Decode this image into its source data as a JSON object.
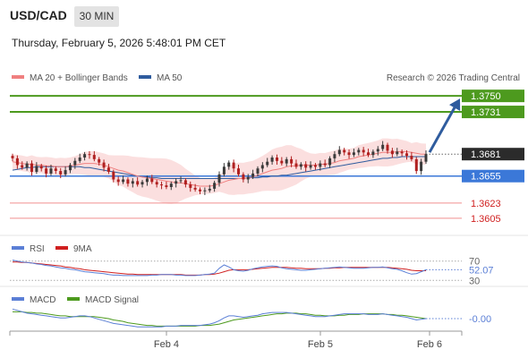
{
  "header": {
    "symbol": "USD/CAD",
    "timeframe": "30 MIN",
    "datetime": "Thursday, February 5, 2026 5:48:01 PM CET"
  },
  "copyright": "Research © 2026 Trading Central",
  "colors": {
    "resistance": "#4d9a1e",
    "support": "#3b78d8",
    "minor": "#f08f8f",
    "ma20": "#f08080",
    "ma50": "#2f5c9e",
    "band_fill": "#f9d4d4",
    "candle_up": "#3a3a3a",
    "candle_down": "#b02020",
    "rsi": "#5b7fd6",
    "rsi_ma": "#d02020",
    "macd": "#5b7fd6",
    "macd_signal": "#4d9a1e",
    "arrow": "#2f5c9e"
  },
  "chart_data": [
    {
      "type": "candlestick",
      "legend": [
        {
          "name": "MA 20 + Bollinger Bands",
          "color": "#f08080"
        },
        {
          "name": "MA 50",
          "color": "#2f5c9e"
        }
      ],
      "ylim": [
        1.359,
        1.3765
      ],
      "x_ticks": [
        "Feb 4",
        "Feb 5",
        "Feb 6"
      ],
      "levels": [
        {
          "label": "1.3750",
          "value": 1.375,
          "kind": "resistance"
        },
        {
          "label": "1.3731",
          "value": 1.3731,
          "kind": "resistance"
        },
        {
          "label": "1.3681",
          "value": 1.3681,
          "kind": "current"
        },
        {
          "label": "1.3655",
          "value": 1.3655,
          "kind": "support"
        },
        {
          "label": "1.3623",
          "value": 1.3623,
          "kind": "minor"
        },
        {
          "label": "1.3605",
          "value": 1.3605,
          "kind": "minor"
        }
      ],
      "close": [
        1.3676,
        1.3668,
        1.3665,
        1.367,
        1.366,
        1.3667,
        1.3664,
        1.3658,
        1.3664,
        1.3661,
        1.3657,
        1.3662,
        1.3668,
        1.3673,
        1.3677,
        1.3681,
        1.368,
        1.3675,
        1.3671,
        1.3665,
        1.366,
        1.3651,
        1.3648,
        1.3651,
        1.3646,
        1.3649,
        1.3645,
        1.3648,
        1.3652,
        1.3648,
        1.3645,
        1.3644,
        1.3642,
        1.3646,
        1.3649,
        1.365,
        1.3645,
        1.3641,
        1.3639,
        1.3637,
        1.3638,
        1.364,
        1.3647,
        1.3657,
        1.3666,
        1.3671,
        1.3664,
        1.3657,
        1.3651,
        1.3654,
        1.3658,
        1.3664,
        1.3668,
        1.3672,
        1.3677,
        1.3673,
        1.367,
        1.3675,
        1.367,
        1.3666,
        1.3669,
        1.3665,
        1.3668,
        1.3666,
        1.367,
        1.3668,
        1.3676,
        1.3681,
        1.3686,
        1.3683,
        1.368,
        1.3683,
        1.3686,
        1.3683,
        1.368,
        1.3684,
        1.3687,
        1.3692,
        1.3685,
        1.3681,
        1.3684,
        1.3682,
        1.3679,
        1.3675,
        1.3661,
        1.3672,
        1.3681
      ],
      "ma20": [
        1.3672,
        1.3671,
        1.367,
        1.3669,
        1.3669,
        1.3668,
        1.3668,
        1.3667,
        1.3667,
        1.3666,
        1.3666,
        1.3666,
        1.3667,
        1.3668,
        1.3669,
        1.367,
        1.367,
        1.367,
        1.3669,
        1.3668,
        1.3666,
        1.3664,
        1.3662,
        1.3661,
        1.3659,
        1.3657,
        1.3655,
        1.3654,
        1.3653,
        1.3652,
        1.3651,
        1.365,
        1.3649,
        1.3648,
        1.3647,
        1.3647,
        1.3646,
        1.3645,
        1.3644,
        1.3643,
        1.3643,
        1.3643,
        1.3644,
        1.3646,
        1.3648,
        1.365,
        1.3651,
        1.3652,
        1.3652,
        1.3653,
        1.3654,
        1.3656,
        1.3658,
        1.366,
        1.3662,
        1.3663,
        1.3664,
        1.3666,
        1.3667,
        1.3667,
        1.3668,
        1.3668,
        1.3668,
        1.3668,
        1.3669,
        1.3669,
        1.367,
        1.3671,
        1.3673,
        1.3674,
        1.3675,
        1.3676,
        1.3678,
        1.3679,
        1.368,
        1.3681,
        1.3682,
        1.3683,
        1.3683,
        1.3683,
        1.3684,
        1.3684,
        1.3684,
        1.3683,
        1.3682,
        1.3681,
        1.3681
      ],
      "ma50": [
        1.3662,
        1.3663,
        1.3664,
        1.3665,
        1.3665,
        1.3666,
        1.3666,
        1.3666,
        1.3666,
        1.3666,
        1.3666,
        1.3666,
        1.3666,
        1.3666,
        1.3666,
        1.3665,
        1.3665,
        1.3664,
        1.3663,
        1.3662,
        1.3661,
        1.366,
        1.3659,
        1.3658,
        1.3657,
        1.3656,
        1.3655,
        1.3654,
        1.3654,
        1.3653,
        1.3653,
        1.3652,
        1.3652,
        1.3652,
        1.3652,
        1.3652,
        1.3652,
        1.3652,
        1.3652,
        1.3652,
        1.3652,
        1.3652,
        1.3652,
        1.3652,
        1.3652,
        1.3652,
        1.3652,
        1.3652,
        1.3652,
        1.3653,
        1.3653,
        1.3653,
        1.3654,
        1.3654,
        1.3655,
        1.3655,
        1.3656,
        1.3656,
        1.3657,
        1.3658,
        1.3659,
        1.366,
        1.3661,
        1.3662,
        1.3663,
        1.3664,
        1.3665,
        1.3666,
        1.3667,
        1.3668,
        1.3669,
        1.367,
        1.3671,
        1.3672,
        1.3673,
        1.3674,
        1.3675,
        1.3676,
        1.3676,
        1.3677,
        1.3677,
        1.3678,
        1.3678,
        1.3678,
        1.3678,
        1.3678,
        1.3678
      ],
      "projection": {
        "from": 1.3681,
        "to": 1.375
      }
    },
    {
      "type": "line",
      "legend": [
        {
          "name": "RSI",
          "color": "#5b7fd6"
        },
        {
          "name": "9MA",
          "color": "#d02020"
        }
      ],
      "ylim": [
        25,
        75
      ],
      "levels": [
        {
          "label": "70",
          "value": 70
        },
        {
          "label": "30",
          "value": 30
        }
      ],
      "last_value_label": "52.07",
      "series": [
        {
          "name": "RSI",
          "values": [
            72,
            70,
            68,
            67,
            66,
            64,
            63,
            61,
            60,
            58,
            56,
            55,
            53,
            52,
            50,
            48,
            47,
            46,
            45,
            44,
            42,
            41,
            41,
            40,
            40,
            40,
            40,
            40,
            40,
            41,
            41,
            42,
            42,
            42,
            41,
            41,
            40,
            40,
            40,
            41,
            42,
            43,
            45,
            55,
            62,
            58,
            52,
            50,
            49,
            51,
            54,
            56,
            58,
            59,
            60,
            59,
            56,
            54,
            53,
            52,
            51,
            51,
            52,
            53,
            54,
            55,
            56,
            57,
            58,
            57,
            56,
            55,
            55,
            55,
            56,
            57,
            57,
            58,
            56,
            54,
            53,
            50,
            46,
            43,
            44,
            48,
            52
          ]
        },
        {
          "name": "9MA",
          "values": [
            68,
            68,
            67,
            67,
            66,
            65,
            64,
            63,
            62,
            61,
            60,
            58,
            57,
            55,
            54,
            52,
            51,
            50,
            49,
            48,
            47,
            46,
            45,
            44,
            43,
            43,
            42,
            42,
            42,
            42,
            42,
            42,
            42,
            42,
            42,
            42,
            41,
            41,
            41,
            41,
            42,
            42,
            43,
            45,
            48,
            51,
            52,
            52,
            52,
            52,
            53,
            54,
            55,
            56,
            57,
            57,
            57,
            57,
            56,
            55,
            55,
            54,
            54,
            54,
            54,
            55,
            55,
            56,
            56,
            57,
            57,
            57,
            57,
            57,
            57,
            57,
            57,
            57,
            57,
            56,
            55,
            54,
            53,
            51,
            50,
            50,
            50
          ]
        }
      ]
    },
    {
      "type": "line",
      "legend": [
        {
          "name": "MACD",
          "color": "#5b7fd6"
        },
        {
          "name": "MACD Signal",
          "color": "#4d9a1e"
        }
      ],
      "ylim": [
        -0.0017,
        0.0017
      ],
      "last_value_label": "-0.00",
      "series": [
        {
          "name": "MACD",
          "values": [
            0.0014,
            0.0012,
            0.001,
            0.0008,
            0.0007,
            0.0006,
            0.0005,
            0.0004,
            0.0003,
            0.0002,
            0.0001,
            0.0001,
            0.0002,
            0.0003,
            0.0004,
            0.0004,
            0.0003,
            0.0001,
            -0.0001,
            -0.0003,
            -0.0005,
            -0.0007,
            -0.0008,
            -0.0009,
            -0.001,
            -0.0011,
            -0.0012,
            -0.0012,
            -0.0012,
            -0.0012,
            -0.0012,
            -0.0012,
            -0.0011,
            -0.0011,
            -0.0011,
            -0.001,
            -0.001,
            -0.001,
            -0.001,
            -0.001,
            -0.0009,
            -0.0008,
            -0.0006,
            -0.0003,
            0.0001,
            0.0004,
            0.0004,
            0.0003,
            0.0002,
            0.0003,
            0.0004,
            0.0005,
            0.0007,
            0.0008,
            0.0009,
            0.0009,
            0.0009,
            0.0009,
            0.0008,
            0.0007,
            0.0006,
            0.0005,
            0.0004,
            0.0003,
            0.0003,
            0.0003,
            0.0004,
            0.0005,
            0.0006,
            0.0007,
            0.0007,
            0.0007,
            0.0007,
            0.0007,
            0.0006,
            0.0006,
            0.0006,
            0.0007,
            0.0006,
            0.0005,
            0.0004,
            0.0003,
            0.0002,
            0.0,
            -0.0002,
            -0.0001,
            0.0
          ]
        },
        {
          "name": "MACD Signal",
          "values": [
            0.001,
            0.001,
            0.001,
            0.0009,
            0.0009,
            0.0008,
            0.0008,
            0.0007,
            0.0006,
            0.0005,
            0.0004,
            0.0004,
            0.0003,
            0.0003,
            0.0003,
            0.0003,
            0.0003,
            0.0003,
            0.0002,
            0.0001,
            0.0,
            -0.0002,
            -0.0003,
            -0.0004,
            -0.0006,
            -0.0007,
            -0.0008,
            -0.0009,
            -0.001,
            -0.001,
            -0.0011,
            -0.0011,
            -0.0011,
            -0.0011,
            -0.0011,
            -0.0011,
            -0.0011,
            -0.0011,
            -0.0011,
            -0.001,
            -0.001,
            -0.001,
            -0.0009,
            -0.0008,
            -0.0006,
            -0.0004,
            -0.0002,
            -0.0001,
            0.0,
            0.0001,
            0.0002,
            0.0003,
            0.0004,
            0.0005,
            0.0006,
            0.0007,
            0.0007,
            0.0008,
            0.0008,
            0.0008,
            0.0007,
            0.0007,
            0.0006,
            0.0005,
            0.0005,
            0.0004,
            0.0004,
            0.0004,
            0.0005,
            0.0005,
            0.0006,
            0.0006,
            0.0006,
            0.0007,
            0.0007,
            0.0007,
            0.0007,
            0.0007,
            0.0006,
            0.0006,
            0.0005,
            0.0005,
            0.0004,
            0.0003,
            0.0002,
            0.0001,
            0.0
          ]
        }
      ]
    }
  ]
}
